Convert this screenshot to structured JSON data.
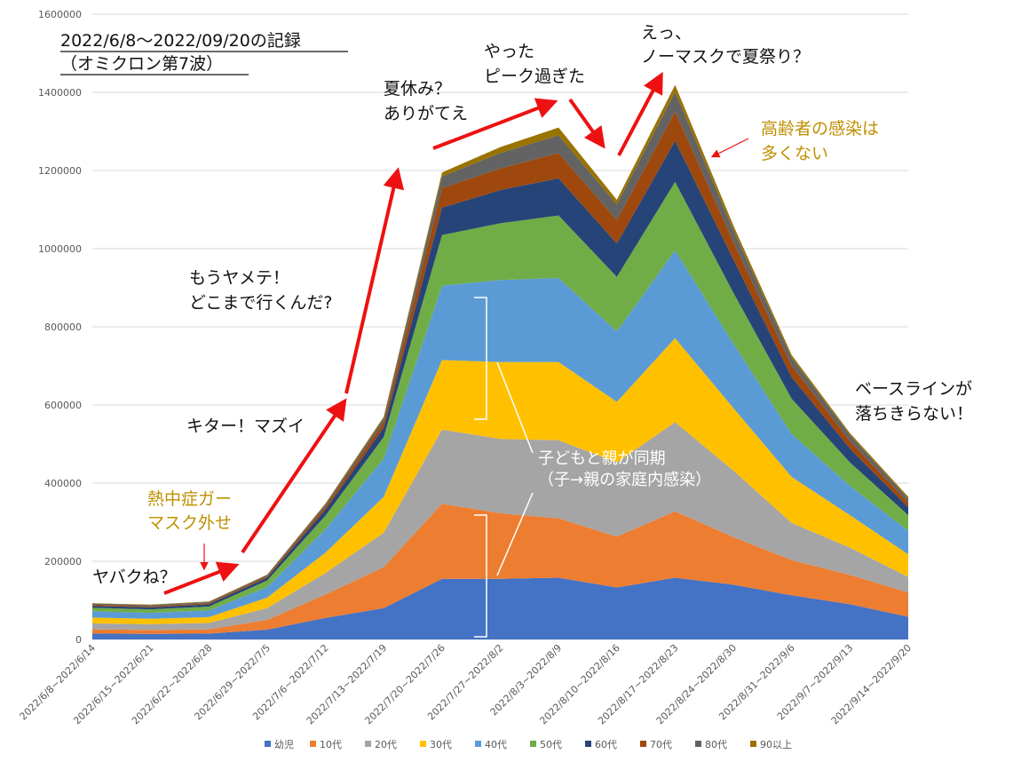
{
  "chart_data": {
    "type": "area",
    "stacked": true,
    "title": "2022/6/8〜2022/09/20の記録",
    "subtitle": "（オミクロン第7波）",
    "categories": [
      "2022/6/8~2022/6/14",
      "2022/6/15~2022/6/21",
      "2022/6/22~2022/6/28",
      "2022/6/29~2022/7/5",
      "2022/7/6~2022/7/12",
      "2022/7/13~2022/7/19",
      "2022/7/20~2022/7/26",
      "2022/7/27~2022/8/2",
      "2022/8/3~2022/8/9",
      "2022/8/10~2022/8/16",
      "2022/8/17~2022/8/23",
      "2022/8/24~2022/8/30",
      "2022/8/31~2022/9/6",
      "2022/9/7~2022/9/13",
      "2022/9/14~2022/9/20"
    ],
    "ylim": [
      0,
      1600000
    ],
    "yticks": [
      0,
      200000,
      400000,
      600000,
      800000,
      1000000,
      1200000,
      1400000,
      1600000
    ],
    "grid": true,
    "legend_position": "bottom",
    "series": [
      {
        "name": "幼児",
        "color": "#4472c4",
        "values": [
          15000,
          14000,
          15000,
          25000,
          55000,
          80000,
          155000,
          155000,
          158000,
          133000,
          158000,
          140000,
          113000,
          90000,
          58000
        ]
      },
      {
        "name": "10代",
        "color": "#ed7d31",
        "values": [
          11000,
          10000,
          11000,
          25000,
          60000,
          105000,
          192000,
          168000,
          152000,
          130000,
          170000,
          122000,
          90000,
          75000,
          62000
        ]
      },
      {
        "name": "20代",
        "color": "#a5a5a5",
        "values": [
          15000,
          15000,
          16000,
          30000,
          55000,
          88000,
          190000,
          190000,
          200000,
          190000,
          228000,
          170000,
          95000,
          70000,
          40000
        ]
      },
      {
        "name": "30代",
        "color": "#ffc000",
        "values": [
          15000,
          14000,
          15000,
          27000,
          52000,
          92000,
          178000,
          197000,
          200000,
          155000,
          215000,
          160000,
          118000,
          83000,
          58000
        ]
      },
      {
        "name": "40代",
        "color": "#5b9bd5",
        "values": [
          16000,
          15000,
          17000,
          27000,
          60000,
          98000,
          190000,
          210000,
          215000,
          180000,
          225000,
          165000,
          110000,
          75000,
          60000
        ]
      },
      {
        "name": "50代",
        "color": "#70ad47",
        "values": [
          9000,
          9000,
          10000,
          17000,
          35000,
          55000,
          130000,
          145000,
          160000,
          140000,
          175000,
          130000,
          90000,
          60000,
          40000
        ]
      },
      {
        "name": "60代",
        "color": "#264478",
        "values": [
          5000,
          5000,
          6000,
          7000,
          15000,
          24000,
          70000,
          85000,
          95000,
          85000,
          105000,
          85000,
          55000,
          35000,
          20000
        ]
      },
      {
        "name": "70代",
        "color": "#9e480e",
        "values": [
          3000,
          3000,
          3000,
          4000,
          8000,
          14000,
          50000,
          55000,
          65000,
          60000,
          75000,
          45000,
          30000,
          20000,
          12000
        ]
      },
      {
        "name": "80代",
        "color": "#636363",
        "values": [
          3000,
          3000,
          3000,
          3000,
          6000,
          10000,
          30000,
          40000,
          45000,
          40000,
          50000,
          30000,
          20000,
          15000,
          10000
        ]
      },
      {
        "name": "90以上",
        "color": "#997300",
        "values": [
          1000,
          1000,
          1000,
          1000,
          2000,
          4000,
          10000,
          15000,
          20000,
          12000,
          18000,
          12000,
          7000,
          5000,
          5000
        ]
      }
    ]
  },
  "annotations": {
    "yabakune": "ヤバクね？",
    "heatstroke": [
      "熱中症ガー",
      "マスク外せ"
    ],
    "kita": "キター！マズイ",
    "mou_yamete": [
      "もうヤメテ！",
      "どこまで行くんだ?"
    ],
    "natsuyasumi": [
      "夏休み？",
      "ありがてえ"
    ],
    "yatta": [
      "やった",
      "ピーク過ぎた"
    ],
    "ett": [
      "えっ、",
      "ノーマスクで夏祭り？"
    ],
    "elderly": [
      "高齢者の感染は",
      "多くない"
    ],
    "baseline": [
      "ベースラインが",
      "落ちきらない！"
    ],
    "sync": [
      "子どもと親が同期",
      "（子→親の家庭内感染）"
    ]
  }
}
